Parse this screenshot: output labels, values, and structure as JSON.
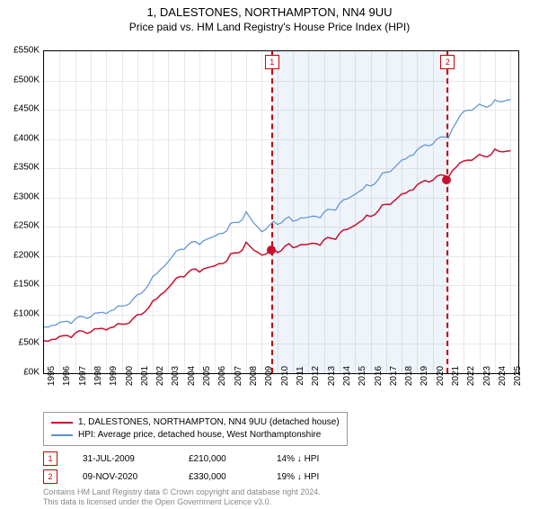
{
  "title": "1, DALESTONES, NORTHAMPTON, NN4 9UU",
  "subtitle": "Price paid vs. HM Land Registry's House Price Index (HPI)",
  "chart": {
    "type": "line",
    "background_color": "#ffffff",
    "grid_color": "#e8e8e8",
    "x_years": [
      1995,
      1996,
      1997,
      1998,
      1999,
      2000,
      2001,
      2002,
      2003,
      2004,
      2005,
      2006,
      2007,
      2008,
      2009,
      2010,
      2011,
      2012,
      2013,
      2014,
      2015,
      2016,
      2017,
      2018,
      2019,
      2020,
      2021,
      2022,
      2023,
      2024,
      2025
    ],
    "xlim": [
      1995,
      2025.5
    ],
    "ylim": [
      0,
      550
    ],
    "ytick_step": 50,
    "ytick_prefix": "£",
    "ytick_suffix": "K",
    "shaded": {
      "from_year": 2009.6,
      "to_year": 2020.9,
      "fill": "#dbe6f3"
    },
    "markers": [
      {
        "label": "1",
        "year": 2009.6,
        "color": "#c00000"
      },
      {
        "label": "2",
        "year": 2020.9,
        "color": "#c00000"
      }
    ],
    "series": [
      {
        "name": "1, DALESTONES, NORTHAMPTON, NN4 9UU (detached house)",
        "color": "#c8102e",
        "width": 1.5,
        "points_k": [
          58,
          62,
          66,
          70,
          76,
          85,
          98,
          120,
          145,
          168,
          178,
          185,
          200,
          218,
          200,
          210,
          220,
          222,
          225,
          235,
          252,
          270,
          290,
          305,
          320,
          330,
          338,
          365,
          372,
          378,
          380
        ],
        "sale_dots": [
          {
            "year": 2009.6,
            "price_k": 210,
            "color": "#c8102e"
          },
          {
            "year": 2020.9,
            "price_k": 330,
            "color": "#c8102e"
          }
        ]
      },
      {
        "name": "HPI: Average price, detached house, West Northamptonshire",
        "color": "#5a8fd6",
        "width": 1.2,
        "points_k": [
          82,
          86,
          90,
          96,
          104,
          116,
          132,
          162,
          190,
          215,
          225,
          236,
          252,
          270,
          240,
          258,
          265,
          268,
          272,
          286,
          305,
          322,
          345,
          363,
          380,
          392,
          405,
          450,
          458,
          462,
          468
        ]
      }
    ]
  },
  "legend": [
    {
      "color": "#c8102e",
      "text": "1, DALESTONES, NORTHAMPTON, NN4 9UU (detached house)"
    },
    {
      "color": "#5a8fd6",
      "text": "HPI: Average price, detached house, West Northamptonshire"
    }
  ],
  "events": [
    {
      "marker": "1",
      "date": "31-JUL-2009",
      "price": "£210,000",
      "delta": "14% ↓ HPI"
    },
    {
      "marker": "2",
      "date": "09-NOV-2020",
      "price": "£330,000",
      "delta": "19% ↓ HPI"
    }
  ],
  "footer1": "Contains HM Land Registry data © Crown copyright and database right 2024.",
  "footer2": "This data is licensed under the Open Government Licence v3.0."
}
